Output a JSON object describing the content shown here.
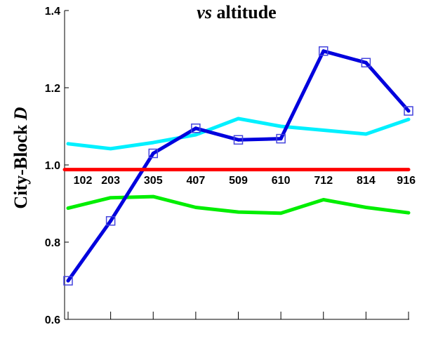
{
  "chart_data": {
    "type": "line",
    "title_italic": "vs",
    "title_rest": " altitude",
    "ylabel_main": "City-Block ",
    "ylabel_italic": "D",
    "categories": [
      "102",
      "203",
      "305",
      "407",
      "509",
      "610",
      "712",
      "814",
      "916"
    ],
    "y_ticks": [
      "0.6",
      "0.8",
      "1.0",
      "1.2",
      "1.4"
    ],
    "ylim": [
      0.6,
      1.4
    ],
    "grid": false,
    "series": [
      {
        "color": "#0000dd",
        "marker": "square",
        "values": [
          0.7,
          0.855,
          1.03,
          1.095,
          1.065,
          1.068,
          1.295,
          1.265,
          1.14
        ]
      },
      {
        "color": "#00f0ff",
        "marker": "none",
        "values": [
          1.055,
          1.042,
          1.058,
          1.078,
          1.12,
          1.1,
          1.09,
          1.08,
          1.118
        ]
      },
      {
        "color": "#ff0000",
        "marker": "none",
        "values": [
          0.988,
          0.988,
          0.988,
          0.988,
          0.988,
          0.988,
          0.988,
          0.988,
          0.988
        ]
      },
      {
        "color": "#00ee00",
        "marker": "none",
        "values": [
          0.888,
          0.915,
          0.918,
          0.89,
          0.878,
          0.875,
          0.91,
          0.89,
          0.876
        ]
      }
    ]
  }
}
